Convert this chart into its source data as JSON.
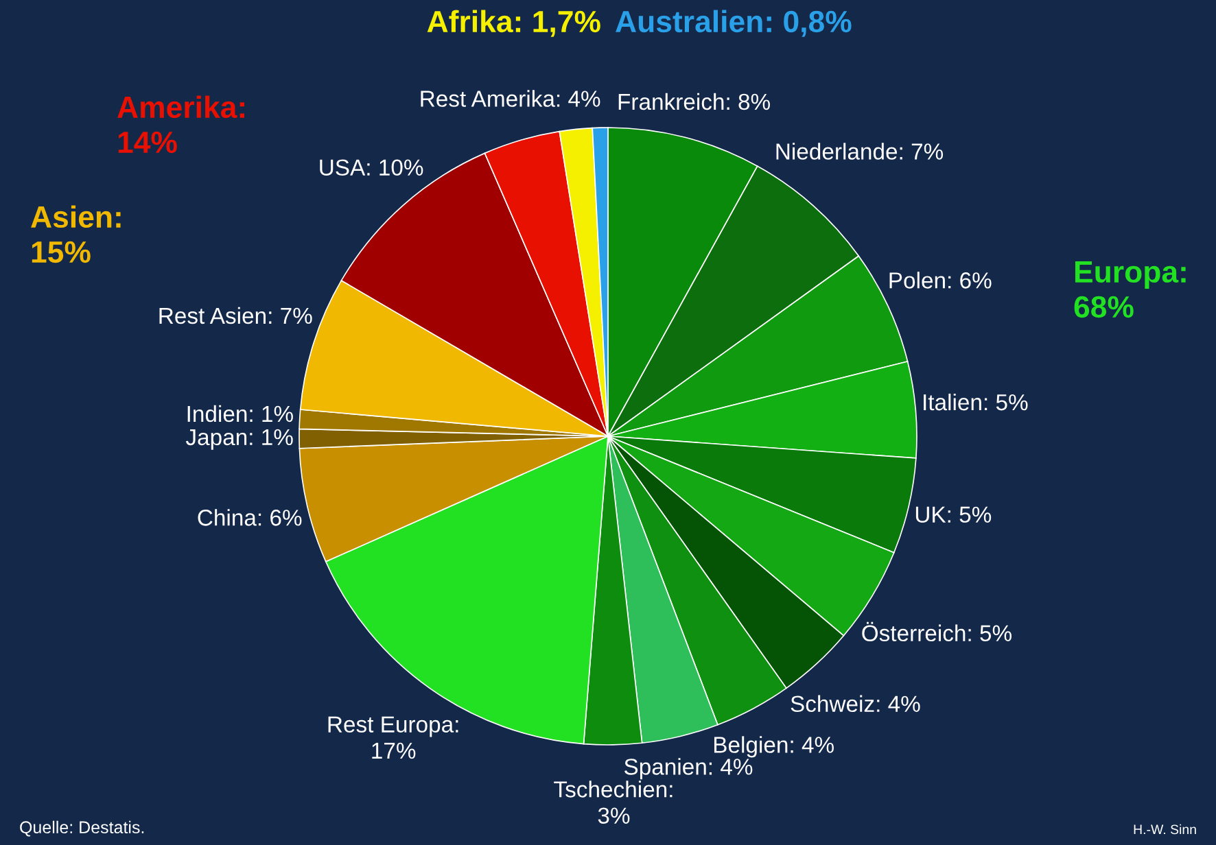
{
  "chart_data": {
    "type": "pie",
    "categories": [
      "Frankreich: 8%",
      "Niederlande: 7%",
      "Polen: 6%",
      "Italien: 5%",
      "UK: 5%",
      "Österreich: 5%",
      "Schweiz: 4%",
      "Belgien: 4%",
      "Spanien: 4%",
      "Tschechien:\n3%",
      "Rest Europa:\n17%",
      "China: 6%",
      "Japan: 1%",
      "Indien: 1%",
      "Rest Asien: 7%",
      "USA: 10%",
      "Rest Amerika: 4%",
      null,
      null
    ],
    "values": [
      8,
      7,
      6,
      5,
      5,
      5,
      4,
      4,
      4,
      3,
      17,
      6,
      1,
      1,
      7,
      10,
      4,
      1.7,
      0.8
    ],
    "colors": [
      "#0a8a0a",
      "#0c6e0c",
      "#0f9a0f",
      "#12b012",
      "#0a7a0a",
      "#14a814",
      "#055405",
      "#109010",
      "#2fbf5a",
      "#0e8c0e",
      "#22e022",
      "#c89000",
      "#806000",
      "#a07800",
      "#f0b800",
      "#a00000",
      "#e81000",
      "#f5f000",
      "#2aa0e8"
    ],
    "annotations": [
      "Europa:\n68%",
      "Asien:\n15%",
      "Amerika:\n14%",
      "Afrika: 1,7%",
      "Australien: 0,8%",
      "Quelle: Destatis.",
      "H.-W. Sinn"
    ],
    "legend": false
  }
}
